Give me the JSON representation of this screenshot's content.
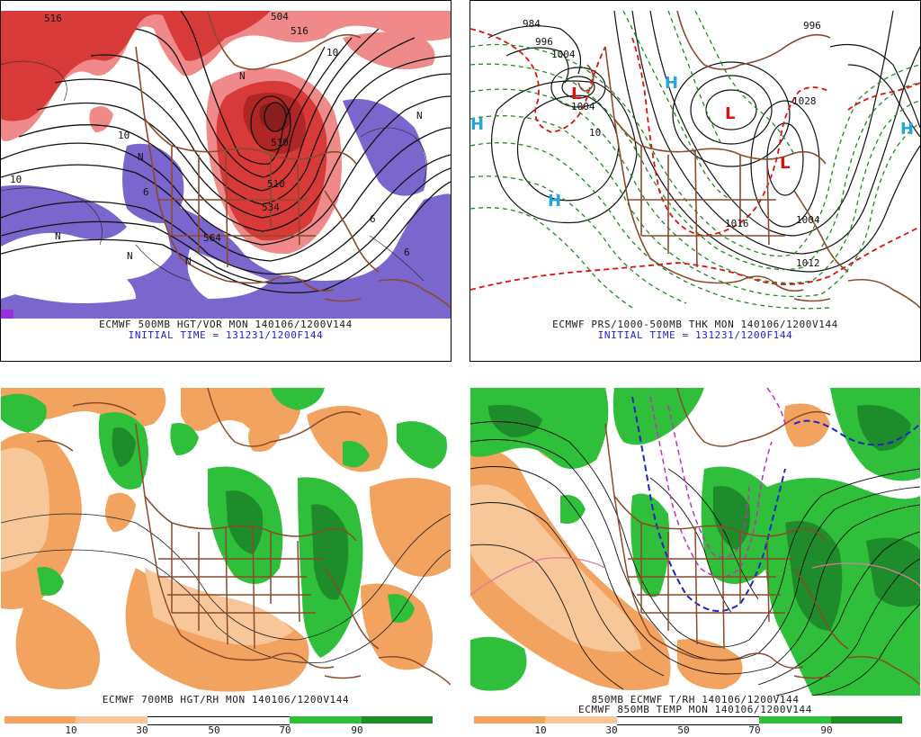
{
  "panels": {
    "p500": {
      "title": "ECMWF 500MB HGT/VOR MON 140106/1200V144",
      "subtitle": "INITIAL TIME = 131231/1200F144",
      "contour_labels": [
        "516",
        "504",
        "516",
        "510",
        "510",
        "534",
        "10",
        "10",
        "10",
        "564",
        "6",
        "6",
        "6",
        "N",
        "N",
        "N",
        "N",
        "N",
        "N"
      ]
    },
    "pmsl": {
      "title": "ECMWF PRS/1000-500MB THK MON 140106/1200V144",
      "subtitle": "INITIAL TIME = 131231/1200F144",
      "contour_labels": [
        "984",
        "996",
        "1004",
        "1004",
        "1016",
        "1028",
        "1004",
        "1012",
        "10",
        "996"
      ],
      "centers": [
        "H",
        "H",
        "H",
        "H",
        "L",
        "L",
        "L"
      ]
    },
    "p700": {
      "title": "ECMWF 700MB HGT/RH MON 140106/1200V144"
    },
    "p850": {
      "title": "850MB ECMWF T/RH 140106/1200V144",
      "title2": "ECMWF 850MB TEMP MON 140106/1200V144"
    }
  },
  "colorbar_left": {
    "colors": [
      "#f2a35f",
      "#f7c79a",
      "#ffffff",
      "#ffffff",
      "#2fbf3a",
      "#1e8c2a"
    ],
    "ticks": [
      "10",
      "30",
      "50",
      "70",
      "90"
    ]
  },
  "colorbar_right": {
    "colors": [
      "#f2a35f",
      "#f7c79a",
      "#ffffff",
      "#ffffff",
      "#2fbf3a",
      "#1e8c2a"
    ],
    "ticks": [
      "10",
      "30",
      "50",
      "70",
      "90"
    ]
  },
  "palette": {
    "vorticity_red": "#d83a3a",
    "vorticity_pink": "#f08a8a",
    "vorticity_dark": "#8a1e1e",
    "vorticity_purple": "#7a66cc",
    "coast_brown": "#8b4a2b",
    "thickness_red": "#e01010",
    "thickness_green": "#1f8a1f",
    "high_cyan": "#21a7d8",
    "low_red": "#e01010",
    "rh_orange": "#f2a35f",
    "rh_green": "#2fbf3a",
    "rh_darkgreen": "#1e8c2a",
    "temp_blue": "#1f24c8",
    "temp_magenta": "#c030c0"
  }
}
